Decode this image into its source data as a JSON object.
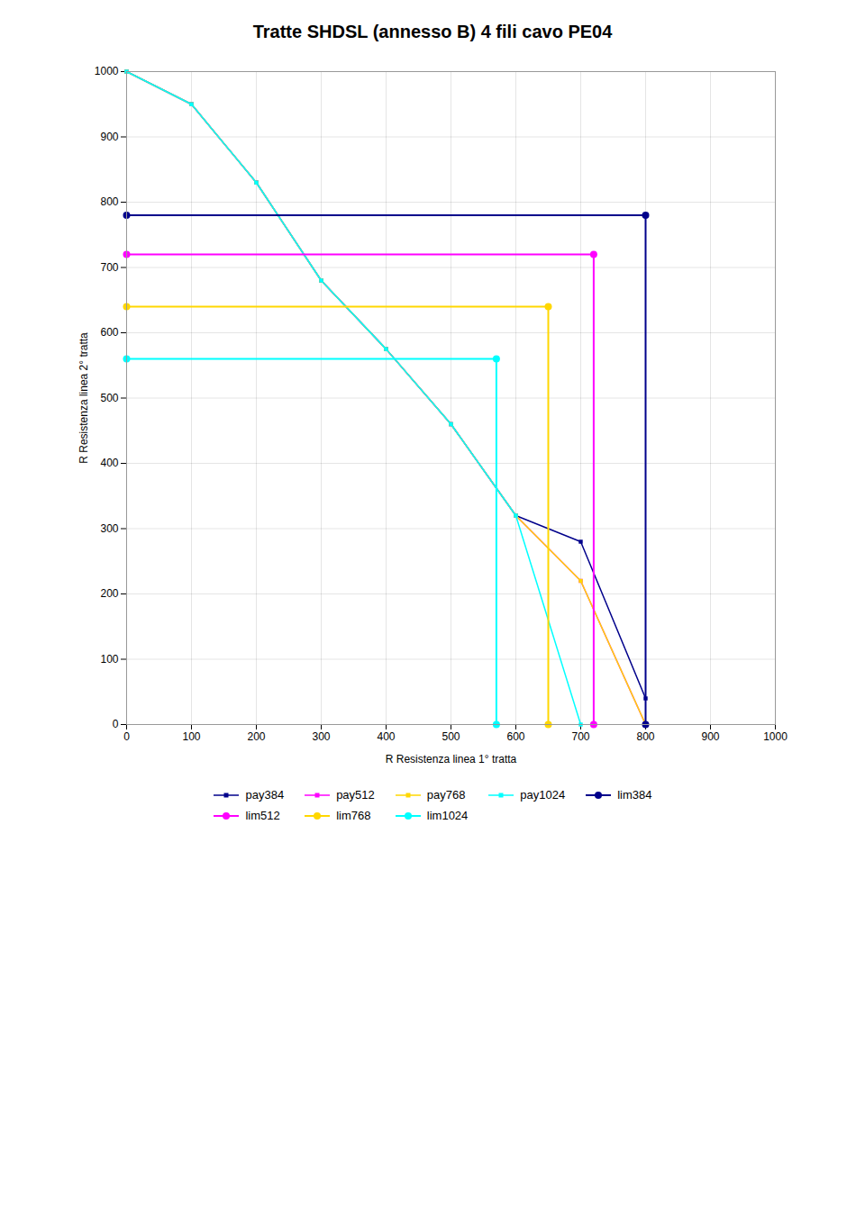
{
  "chart_data": {
    "type": "line",
    "title": "Tratte SHDSL (annesso B) 4 fili cavo PE04",
    "xlabel": "R Resistenza linea 1° tratta",
    "ylabel": "R Resistenza linea 2° tratta",
    "xlim": [
      0,
      1000
    ],
    "ylim": [
      0,
      1000
    ],
    "xticks": [
      0,
      100,
      200,
      300,
      400,
      500,
      600,
      700,
      800,
      900,
      1000
    ],
    "yticks": [
      0,
      100,
      200,
      300,
      400,
      500,
      600,
      700,
      800,
      900,
      1000
    ],
    "grid": true,
    "legend": "bottom",
    "series": [
      {
        "name": "pay384",
        "color": "#00008B",
        "marker": "square",
        "x": [
          0,
          100,
          200,
          300,
          400,
          500,
          600,
          700,
          800
        ],
        "values": [
          1000,
          950,
          830,
          680,
          575,
          460,
          320,
          280,
          40
        ]
      },
      {
        "name": "pay512",
        "color": "#FF00FF",
        "marker": "square",
        "x": [
          0,
          100,
          200,
          300,
          400,
          500,
          600,
          700,
          800
        ],
        "values": [
          1000,
          950,
          830,
          680,
          575,
          460,
          320,
          220,
          0
        ]
      },
      {
        "name": "pay768",
        "color": "#FFD700",
        "marker": "square",
        "x": [
          0,
          100,
          200,
          300,
          400,
          500,
          600,
          700,
          800
        ],
        "values": [
          1000,
          950,
          830,
          680,
          575,
          460,
          320,
          220,
          0
        ]
      },
      {
        "name": "pay1024",
        "color": "#00FFFF",
        "marker": "square",
        "x": [
          0,
          100,
          200,
          300,
          400,
          500,
          600,
          700
        ],
        "values": [
          1000,
          950,
          830,
          680,
          575,
          460,
          320,
          0
        ]
      },
      {
        "name": "lim384",
        "color": "#00008B",
        "marker": "circle",
        "x": [
          0,
          800,
          800
        ],
        "values": [
          780,
          780,
          0
        ]
      },
      {
        "name": "lim512",
        "color": "#FF00FF",
        "marker": "circle",
        "x": [
          0,
          720,
          720
        ],
        "values": [
          720,
          720,
          0
        ]
      },
      {
        "name": "lim768",
        "color": "#FFD700",
        "marker": "circle",
        "x": [
          0,
          650,
          650
        ],
        "values": [
          640,
          640,
          0
        ]
      },
      {
        "name": "lim1024",
        "color": "#00FFFF",
        "marker": "circle",
        "x": [
          0,
          570,
          570
        ],
        "values": [
          560,
          560,
          0
        ]
      }
    ]
  }
}
